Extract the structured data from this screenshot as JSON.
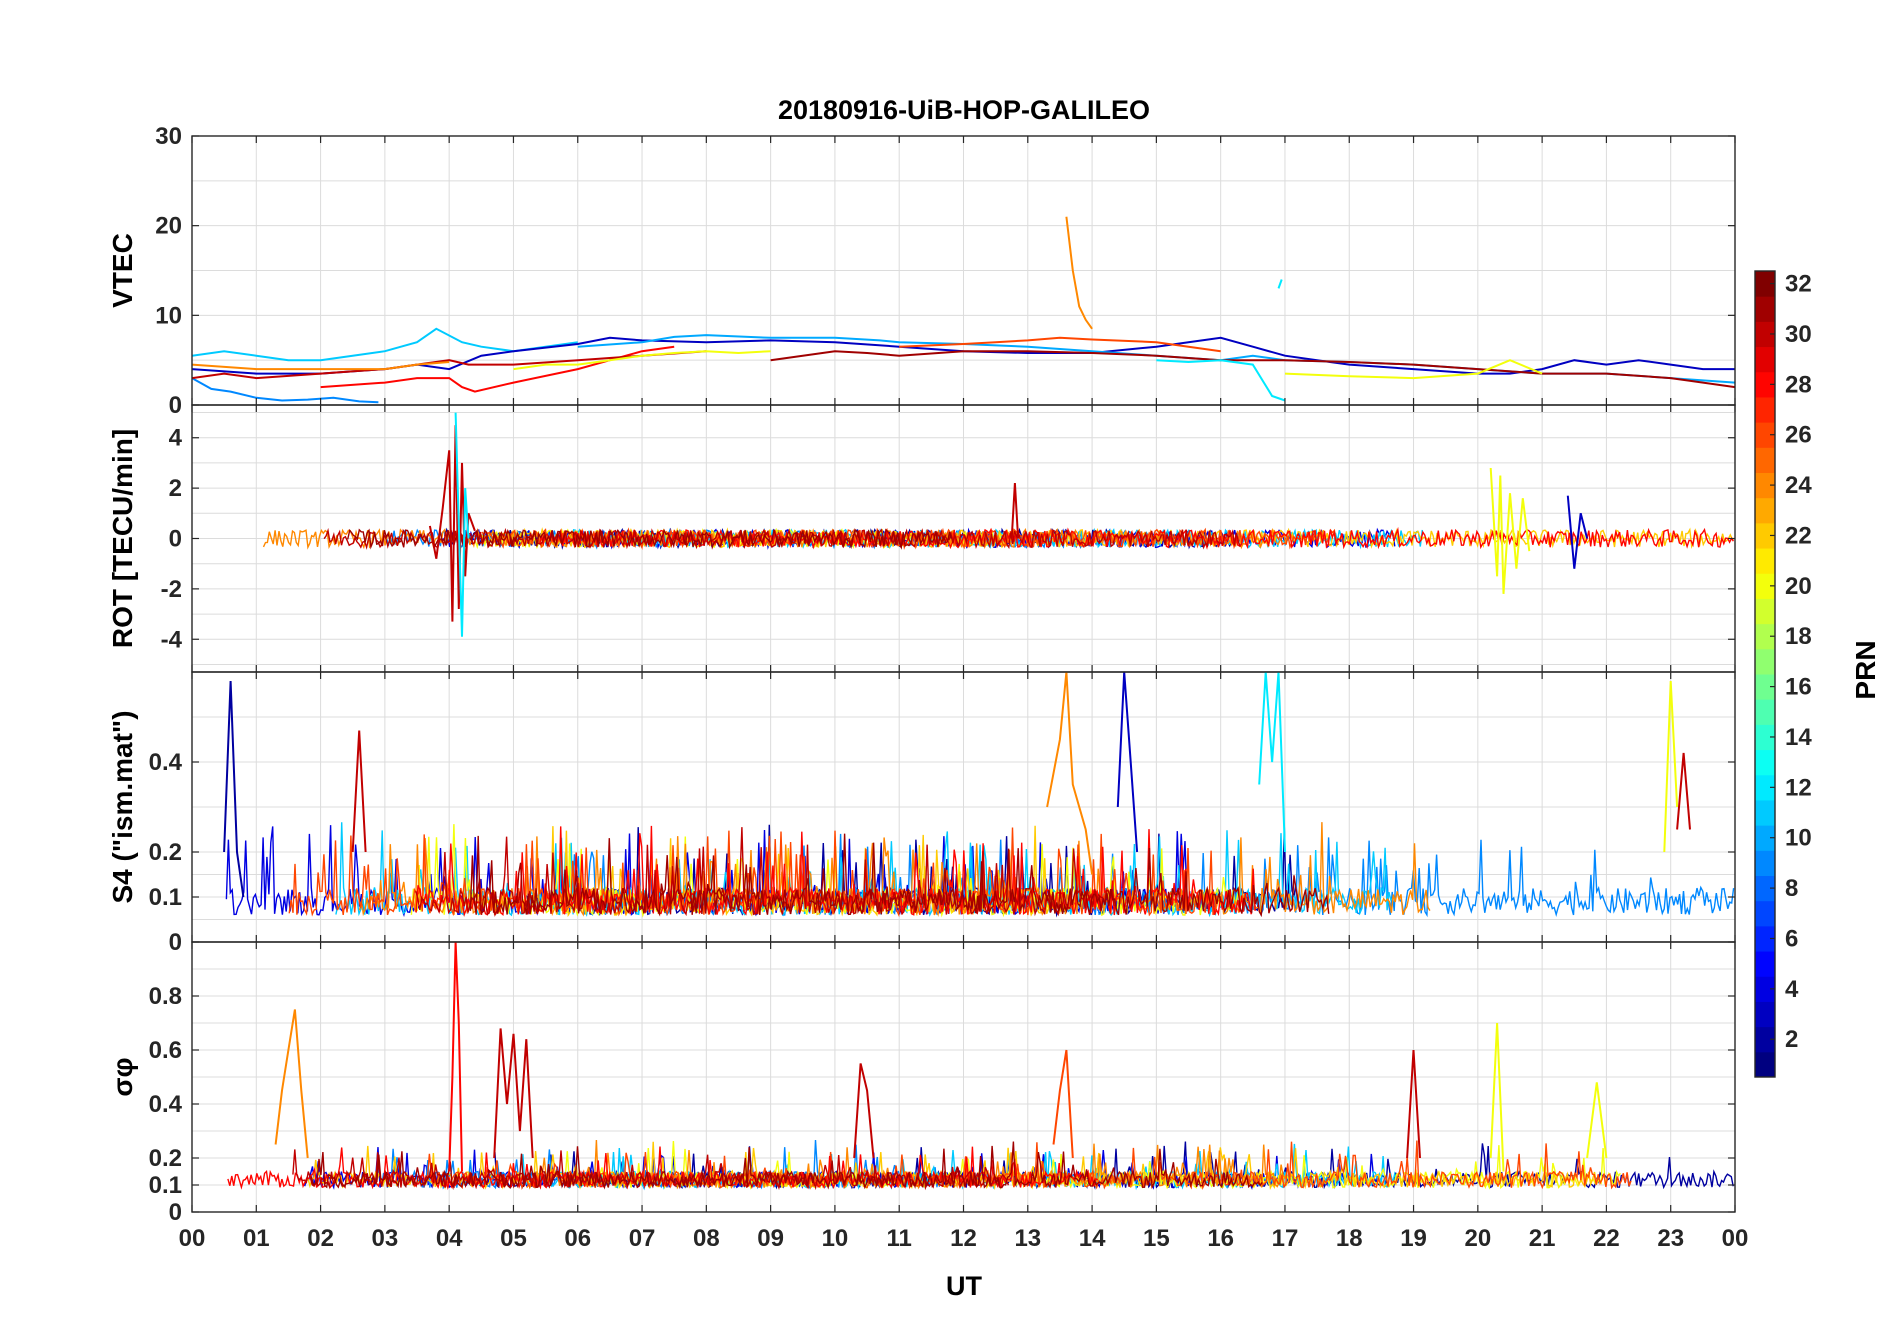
{
  "chart_data": {
    "type": "line",
    "title": "20180916-UiB-HOP-GALILEO",
    "xlabel": "UT",
    "x_range_hours": [
      0,
      24
    ],
    "x_tick_labels": [
      "00",
      "01",
      "02",
      "03",
      "04",
      "05",
      "06",
      "07",
      "08",
      "09",
      "10",
      "11",
      "12",
      "13",
      "14",
      "15",
      "16",
      "17",
      "18",
      "19",
      "20",
      "21",
      "22",
      "23",
      "00"
    ],
    "colorbar": {
      "label": "PRN",
      "range": [
        1,
        32
      ],
      "tick_labels": [
        "2",
        "4",
        "6",
        "8",
        "10",
        "12",
        "14",
        "16",
        "18",
        "20",
        "22",
        "24",
        "26",
        "28",
        "30",
        "32"
      ],
      "colormap": "jet"
    },
    "panels": [
      {
        "name": "vtec",
        "ylabel": "VTEC",
        "ylim": [
          0,
          30
        ],
        "ytick_labels": [
          "0",
          "10",
          "20",
          "30"
        ],
        "series": [
          {
            "prn": 11,
            "x": [
              0,
              0.5,
              1,
              1.5,
              2,
              2.5,
              3,
              3.5,
              3.8,
              4.2,
              4.5,
              5,
              5.5,
              6
            ],
            "y": [
              5.5,
              6,
              5.5,
              5,
              5,
              5.5,
              6,
              7,
              8.5,
              7,
              6.5,
              6,
              6.5,
              7
            ]
          },
          {
            "prn": 9,
            "x": [
              0,
              0.3,
              0.6,
              1,
              1.4,
              1.8,
              2.2,
              2.6,
              2.9
            ],
            "y": [
              3,
              1.8,
              1.5,
              0.8,
              0.5,
              0.6,
              0.8,
              0.4,
              0.3
            ]
          },
          {
            "prn": 3,
            "x": [
              0,
              1,
              2,
              3,
              3.5,
              4,
              4.5,
              5,
              6,
              6.5,
              7,
              8,
              9,
              10,
              11,
              12,
              13,
              14,
              15,
              15.5,
              16,
              16.5,
              17,
              17.5,
              18,
              19,
              20,
              20.5,
              21,
              21.5,
              22,
              22.5,
              23,
              23.5,
              24
            ],
            "y": [
              4,
              3.5,
              3.5,
              4,
              4.5,
              4,
              5.5,
              6,
              6.8,
              7.5,
              7.2,
              7,
              7.2,
              7,
              6.5,
              6,
              5.8,
              5.8,
              6.5,
              7,
              7.5,
              6.5,
              5.5,
              5,
              4.5,
              4,
              3.5,
              3.5,
              4,
              5,
              4.5,
              5,
              4.5,
              4,
              4
            ]
          },
          {
            "prn": 10,
            "x": [
              6,
              7,
              7.5,
              8,
              9,
              10,
              10.7,
              11,
              12,
              13,
              14,
              15,
              16,
              16.5,
              17,
              18,
              19,
              20,
              21,
              22,
              23,
              24
            ],
            "y": [
              6.5,
              7,
              7.6,
              7.8,
              7.5,
              7.5,
              7.2,
              7,
              6.8,
              6.5,
              6,
              5.5,
              5,
              5.5,
              5,
              4.8,
              4.5,
              4,
              3.5,
              3.5,
              3,
              2.5
            ]
          },
          {
            "prn": 28,
            "x": [
              2,
              3,
              3.5,
              4,
              4.2,
              4.4,
              5,
              6,
              7,
              7.5
            ],
            "y": [
              2,
              2.5,
              3,
              3,
              2,
              1.5,
              2.5,
              4,
              6,
              6.5
            ]
          },
          {
            "prn": 30,
            "x": [
              0,
              0.5,
              1,
              2,
              3,
              3.5,
              4,
              4.3,
              5,
              6,
              7,
              8
            ],
            "y": [
              3,
              3.5,
              3,
              3.5,
              4,
              4.5,
              5,
              4.5,
              4.5,
              5,
              5.5,
              6
            ]
          },
          {
            "prn": 20,
            "x": [
              5,
              5.5,
              6,
              6.5,
              7,
              7.5,
              8,
              8.5,
              9
            ],
            "y": [
              4,
              4.5,
              4.5,
              5,
              5.5,
              5.8,
              6,
              5.8,
              6
            ]
          },
          {
            "prn": 24,
            "x": [
              0,
              1,
              2,
              3,
              3.5,
              4
            ],
            "y": [
              4.5,
              4,
              4,
              4,
              4.5,
              4.8
            ]
          },
          {
            "prn": 24,
            "x": [
              13.6,
              13.7,
              13.8,
              13.9,
              14.0
            ],
            "y": [
              21,
              15,
              11,
              9.5,
              8.5
            ]
          },
          {
            "prn": 26,
            "x": [
              11,
              12,
              12.5,
              13,
              13.5,
              14,
              15,
              15.5,
              16
            ],
            "y": [
              6.5,
              6.8,
              7,
              7.2,
              7.5,
              7.3,
              7,
              6.5,
              6
            ]
          },
          {
            "prn": 31,
            "x": [
              9,
              10,
              10.5,
              11,
              12,
              13,
              14,
              15,
              16,
              17,
              18,
              19,
              20,
              21,
              22,
              23,
              24
            ],
            "y": [
              5,
              6,
              5.8,
              5.5,
              6,
              6,
              5.8,
              5.5,
              5,
              5,
              4.8,
              4.5,
              4,
              3.5,
              3.5,
              3,
              2
            ]
          },
          {
            "prn": 12,
            "x": [
              15,
              15.5,
              16,
              16.5,
              16.8,
              17
            ],
            "y": [
              5,
              4.8,
              5,
              4.5,
              1,
              0.5
            ]
          },
          {
            "prn": 20,
            "x": [
              17,
              18,
              19,
              20,
              20.5,
              21
            ],
            "y": [
              3.5,
              3.2,
              3,
              3.5,
              5,
              3.5
            ]
          },
          {
            "prn": 12,
            "x": [
              16.9,
              16.95
            ],
            "y": [
              13,
              14
            ]
          }
        ]
      },
      {
        "name": "rot",
        "ylabel": "ROT [TECU/min]",
        "ylim": [
          -5.3,
          5.3
        ],
        "ytick_labels": [
          "-4",
          "-2",
          "0",
          "2",
          "4"
        ],
        "series": [
          {
            "prn": 30,
            "x": [
              3.7,
              3.8,
              3.9,
              4.0,
              4.05,
              4.1,
              4.15,
              4.2,
              4.25,
              4.3,
              4.4
            ],
            "y": [
              0.5,
              -0.8,
              1.2,
              3.5,
              -3.3,
              4.5,
              -2.8,
              3,
              -1.5,
              1,
              0.3
            ]
          },
          {
            "prn": 12,
            "x": [
              4.1,
              4.2,
              4.25,
              4.3
            ],
            "y": [
              5,
              -3.9,
              2,
              0
            ]
          },
          {
            "prn": 30,
            "x": [
              12.75,
              12.8,
              12.85
            ],
            "y": [
              0,
              2.2,
              0
            ]
          },
          {
            "prn": 20,
            "x": [
              20.2,
              20.3,
              20.35,
              20.4,
              20.5,
              20.6,
              20.7,
              20.8
            ],
            "y": [
              2.8,
              -1.5,
              2.5,
              -2.2,
              1.8,
              -1.2,
              1.6,
              -0.5
            ]
          },
          {
            "prn": 3,
            "x": [
              21.4,
              21.5,
              21.6,
              21.7
            ],
            "y": [
              1.7,
              -1.2,
              1,
              0
            ]
          }
        ]
      },
      {
        "name": "s4",
        "ylabel": "S4 (\"ism.mat\")",
        "ylim": [
          0,
          0.6
        ],
        "ytick_labels": [
          "0",
          "0.1",
          "0.2",
          "0.4"
        ],
        "series": [
          {
            "prn": 2,
            "x": [
              0.5,
              0.6,
              0.7,
              0.8
            ],
            "y": [
              0.2,
              0.58,
              0.2,
              0.1
            ]
          },
          {
            "prn": 24,
            "x": [
              13.3,
              13.5,
              13.6,
              13.7,
              13.9,
              14.0
            ],
            "y": [
              0.3,
              0.45,
              0.6,
              0.35,
              0.25,
              0.15
            ]
          },
          {
            "prn": 3,
            "x": [
              14.4,
              14.5,
              14.6,
              14.7
            ],
            "y": [
              0.3,
              0.6,
              0.4,
              0.2
            ]
          },
          {
            "prn": 12,
            "x": [
              16.6,
              16.7,
              16.8,
              16.9,
              17.0
            ],
            "y": [
              0.35,
              0.6,
              0.4,
              0.6,
              0.2
            ]
          },
          {
            "prn": 20,
            "x": [
              22.9,
              23.0,
              23.1
            ],
            "y": [
              0.2,
              0.58,
              0.3
            ]
          },
          {
            "prn": 30,
            "x": [
              23.1,
              23.2,
              23.3
            ],
            "y": [
              0.25,
              0.42,
              0.25
            ]
          },
          {
            "prn": 30,
            "x": [
              2.5,
              2.6,
              2.7
            ],
            "y": [
              0.2,
              0.47,
              0.2
            ]
          }
        ]
      },
      {
        "name": "sigma_phi",
        "ylabel": "σφ",
        "ylim": [
          0,
          1
        ],
        "ytick_labels": [
          "0",
          "0.1",
          "0.2",
          "0.4",
          "0.6",
          "0.8"
        ],
        "series": [
          {
            "prn": 24,
            "x": [
              1.3,
              1.4,
              1.5,
              1.6,
              1.7,
              1.8
            ],
            "y": [
              0.25,
              0.45,
              0.6,
              0.75,
              0.45,
              0.2
            ]
          },
          {
            "prn": 28,
            "x": [
              4.0,
              4.05,
              4.1,
              4.15,
              4.2
            ],
            "y": [
              0.15,
              0.5,
              1.0,
              0.7,
              0.15
            ]
          },
          {
            "prn": 30,
            "x": [
              4.7,
              4.8,
              4.9,
              5.0,
              5.1,
              5.2,
              5.3
            ],
            "y": [
              0.2,
              0.68,
              0.4,
              0.66,
              0.3,
              0.64,
              0.2
            ]
          },
          {
            "prn": 30,
            "x": [
              10.3,
              10.4,
              10.5,
              10.6
            ],
            "y": [
              0.2,
              0.55,
              0.45,
              0.2
            ]
          },
          {
            "prn": 26,
            "x": [
              13.4,
              13.5,
              13.6,
              13.7
            ],
            "y": [
              0.25,
              0.45,
              0.6,
              0.2
            ]
          },
          {
            "prn": 30,
            "x": [
              18.9,
              19.0,
              19.1
            ],
            "y": [
              0.2,
              0.6,
              0.2
            ]
          },
          {
            "prn": 20,
            "x": [
              20.2,
              20.3,
              20.4
            ],
            "y": [
              0.2,
              0.7,
              0.15
            ]
          },
          {
            "prn": 20,
            "x": [
              21.7,
              21.85,
              22.0
            ],
            "y": [
              0.2,
              0.48,
              0.2
            ]
          }
        ]
      }
    ]
  }
}
